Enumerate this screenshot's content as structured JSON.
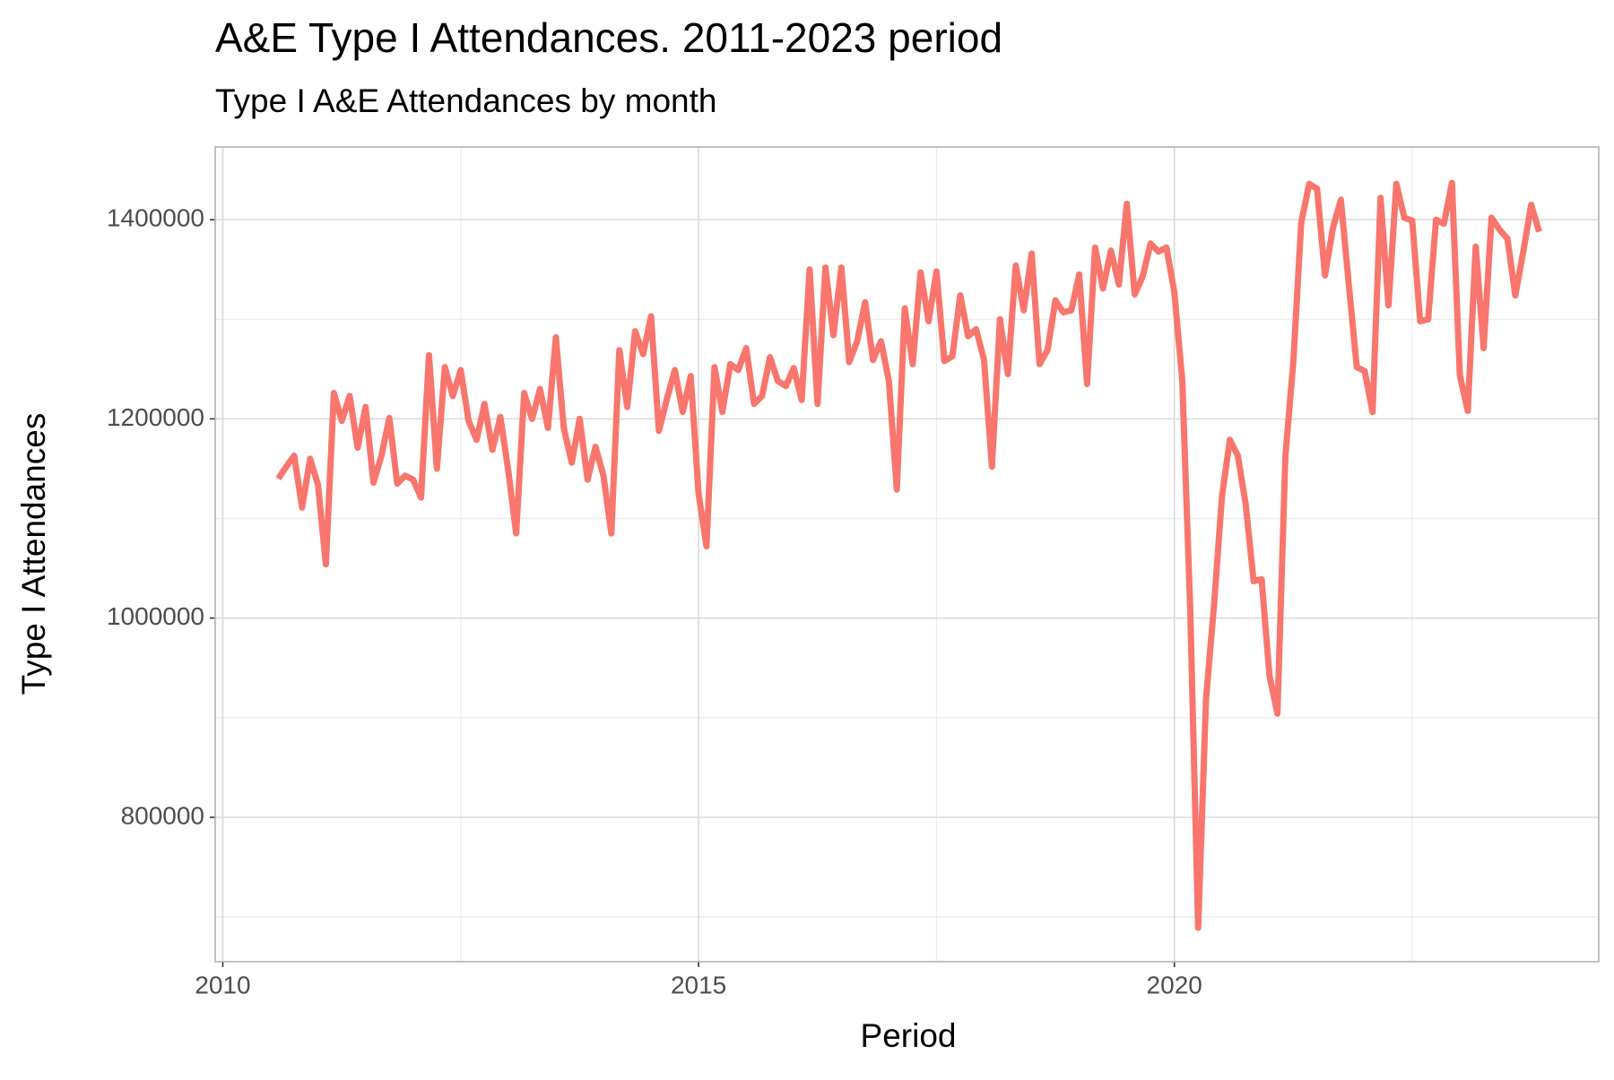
{
  "chart_data": {
    "type": "line",
    "title": "A&E Type I Attendances. 2011-2023 period",
    "subtitle": "Type I A&E Attendances by month",
    "x_label": "Period",
    "y_label": "Type I Attendances",
    "color": "#f8766d",
    "grid": true,
    "xlim": [
      2009.92,
      2024.46
    ],
    "xticks": [
      2010,
      2015,
      2020
    ],
    "ylim": [
      655000,
      1473000
    ],
    "yticks": [
      800000,
      1000000,
      1200000,
      1400000
    ],
    "x": [
      2010.583,
      2010.667,
      2010.75,
      2010.833,
      2010.917,
      2011,
      2011.083,
      2011.167,
      2011.25,
      2011.333,
      2011.417,
      2011.5,
      2011.583,
      2011.667,
      2011.75,
      2011.833,
      2011.917,
      2012,
      2012.083,
      2012.167,
      2012.25,
      2012.333,
      2012.417,
      2012.5,
      2012.583,
      2012.667,
      2012.75,
      2012.833,
      2012.917,
      2013,
      2013.083,
      2013.167,
      2013.25,
      2013.333,
      2013.417,
      2013.5,
      2013.583,
      2013.667,
      2013.75,
      2013.833,
      2013.917,
      2014,
      2014.083,
      2014.167,
      2014.25,
      2014.333,
      2014.417,
      2014.5,
      2014.583,
      2014.667,
      2014.75,
      2014.833,
      2014.917,
      2015,
      2015.083,
      2015.167,
      2015.25,
      2015.333,
      2015.417,
      2015.5,
      2015.583,
      2015.667,
      2015.75,
      2015.833,
      2015.917,
      2016,
      2016.083,
      2016.167,
      2016.25,
      2016.333,
      2016.417,
      2016.5,
      2016.583,
      2016.667,
      2016.75,
      2016.833,
      2016.917,
      2017,
      2017.083,
      2017.167,
      2017.25,
      2017.333,
      2017.417,
      2017.5,
      2017.583,
      2017.667,
      2017.75,
      2017.833,
      2017.917,
      2018,
      2018.083,
      2018.167,
      2018.25,
      2018.333,
      2018.417,
      2018.5,
      2018.583,
      2018.667,
      2018.75,
      2018.833,
      2018.917,
      2019,
      2019.083,
      2019.167,
      2019.25,
      2019.333,
      2019.417,
      2019.5,
      2019.583,
      2019.667,
      2019.75,
      2019.833,
      2019.917,
      2020,
      2020.083,
      2020.167,
      2020.25,
      2020.333,
      2020.417,
      2020.5,
      2020.583,
      2020.667,
      2020.75,
      2020.833,
      2020.917,
      2021,
      2021.083,
      2021.167,
      2021.25,
      2021.333,
      2021.417,
      2021.5,
      2021.583,
      2021.667,
      2021.75,
      2021.833,
      2021.917,
      2022,
      2022.083,
      2022.167,
      2022.25,
      2022.333,
      2022.417,
      2022.5,
      2022.583,
      2022.667,
      2022.75,
      2022.833,
      2022.917,
      2023,
      2023.083,
      2023.167,
      2023.25,
      2023.333,
      2023.417,
      2023.5,
      2023.583,
      2023.667,
      2023.75,
      2023.833
    ],
    "values": [
      1140000,
      1152000,
      1163000,
      1111000,
      1160000,
      1134000,
      1054000,
      1226000,
      1198000,
      1223000,
      1171000,
      1212000,
      1136000,
      1163000,
      1201000,
      1135000,
      1143000,
      1139000,
      1121000,
      1264000,
      1150000,
      1252000,
      1223000,
      1249000,
      1198000,
      1179000,
      1215000,
      1169000,
      1202000,
      1148000,
      1085000,
      1226000,
      1200000,
      1230000,
      1191000,
      1282000,
      1191000,
      1156000,
      1200000,
      1139000,
      1172000,
      1143000,
      1085000,
      1269000,
      1212000,
      1288000,
      1265000,
      1303000,
      1188000,
      1220000,
      1249000,
      1207000,
      1243000,
      1125000,
      1072000,
      1252000,
      1207000,
      1255000,
      1249000,
      1271000,
      1215000,
      1223000,
      1262000,
      1238000,
      1233000,
      1251000,
      1219000,
      1350000,
      1215000,
      1352000,
      1284000,
      1352000,
      1257000,
      1278000,
      1317000,
      1259000,
      1278000,
      1238000,
      1129000,
      1311000,
      1255000,
      1347000,
      1298000,
      1348000,
      1258000,
      1263000,
      1324000,
      1283000,
      1290000,
      1259000,
      1152000,
      1300000,
      1245000,
      1354000,
      1309000,
      1366000,
      1255000,
      1269000,
      1319000,
      1307000,
      1309000,
      1345000,
      1235000,
      1372000,
      1331000,
      1369000,
      1335000,
      1416000,
      1325000,
      1343000,
      1376000,
      1368000,
      1372000,
      1327000,
      1239000,
      1008000,
      689000,
      919000,
      1013000,
      1122000,
      1179000,
      1163000,
      1114000,
      1037000,
      1039000,
      942000,
      904000,
      1163000,
      1257000,
      1397000,
      1436000,
      1431000,
      1344000,
      1392000,
      1420000,
      1335000,
      1252000,
      1248000,
      1207000,
      1422000,
      1314000,
      1436000,
      1402000,
      1399000,
      1298000,
      1300000,
      1400000,
      1396000,
      1437000,
      1244000,
      1208000,
      1373000,
      1271000,
      1402000,
      1390000,
      1381000,
      1324000,
      1368000,
      1415000,
      1388000
    ]
  }
}
